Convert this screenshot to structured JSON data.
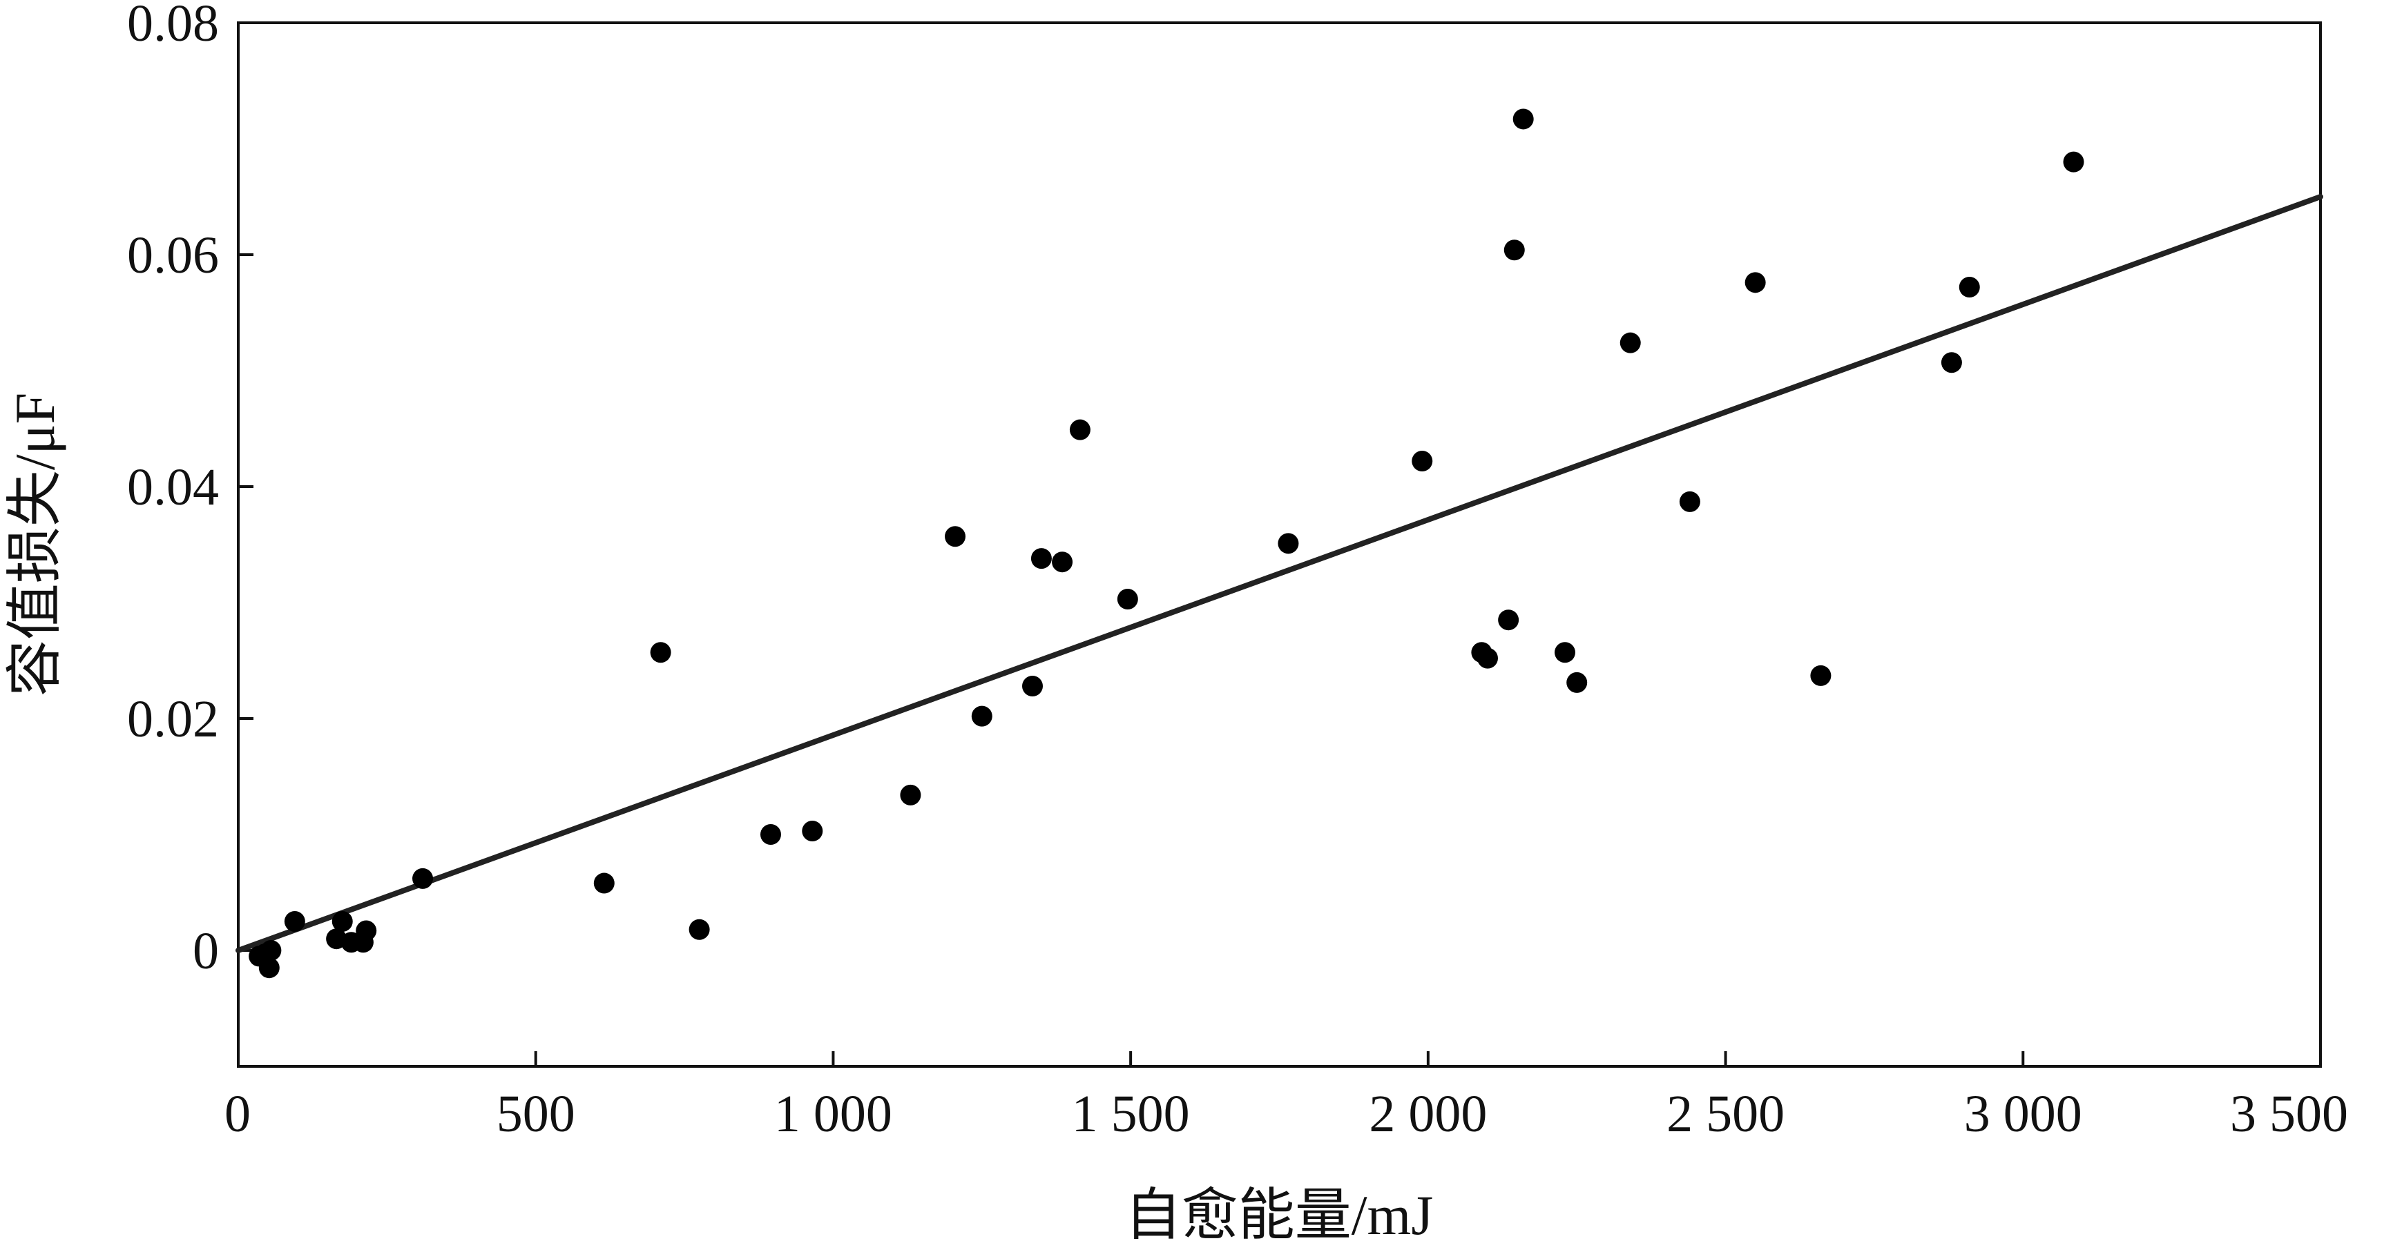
{
  "chart_data": {
    "type": "scatter",
    "title": "",
    "xlabel": "自愈能量/mJ",
    "ylabel": "容值损失/μF",
    "xlim": [
      0,
      3500
    ],
    "ylim": [
      -0.01,
      0.08
    ],
    "grid": false,
    "x_ticks": [
      {
        "value": 0,
        "label": "0"
      },
      {
        "value": 500,
        "label": "500"
      },
      {
        "value": 1000,
        "label": "1 000"
      },
      {
        "value": 1500,
        "label": "1 500"
      },
      {
        "value": 2000,
        "label": "2 000"
      },
      {
        "value": 2500,
        "label": "2 500"
      },
      {
        "value": 3000,
        "label": "3 000"
      },
      {
        "value": 3500,
        "label": "3 500"
      }
    ],
    "y_ticks": [
      {
        "value": 0,
        "label": "0"
      },
      {
        "value": 0.02,
        "label": "0.02"
      },
      {
        "value": 0.04,
        "label": "0.04"
      },
      {
        "value": 0.06,
        "label": "0.06"
      },
      {
        "value": 0.08,
        "label": "0.08"
      }
    ],
    "series": [
      {
        "points": [
          {
            "x": 35,
            "y": -0.0005
          },
          {
            "x": 45,
            "y": -0.0003
          },
          {
            "x": 52,
            "y": -0.0015
          },
          {
            "x": 55,
            "y": 0.0
          },
          {
            "x": 95,
            "y": 0.0025
          },
          {
            "x": 165,
            "y": 0.001
          },
          {
            "x": 175,
            "y": 0.0025
          },
          {
            "x": 190,
            "y": 0.0007
          },
          {
            "x": 210,
            "y": 0.0007
          },
          {
            "x": 215,
            "y": 0.0017
          },
          {
            "x": 310,
            "y": 0.0062
          },
          {
            "x": 615,
            "y": 0.0058
          },
          {
            "x": 710,
            "y": 0.0257
          },
          {
            "x": 775,
            "y": 0.0018
          },
          {
            "x": 895,
            "y": 0.01
          },
          {
            "x": 965,
            "y": 0.0103
          },
          {
            "x": 1130,
            "y": 0.0134
          },
          {
            "x": 1205,
            "y": 0.0357
          },
          {
            "x": 1250,
            "y": 0.0202
          },
          {
            "x": 1335,
            "y": 0.0228
          },
          {
            "x": 1350,
            "y": 0.0338
          },
          {
            "x": 1385,
            "y": 0.0335
          },
          {
            "x": 1415,
            "y": 0.0449
          },
          {
            "x": 1495,
            "y": 0.0303
          },
          {
            "x": 1765,
            "y": 0.0351
          },
          {
            "x": 1990,
            "y": 0.0422
          },
          {
            "x": 2090,
            "y": 0.0257
          },
          {
            "x": 2100,
            "y": 0.0252
          },
          {
            "x": 2135,
            "y": 0.0285
          },
          {
            "x": 2145,
            "y": 0.0604
          },
          {
            "x": 2160,
            "y": 0.0717
          },
          {
            "x": 2230,
            "y": 0.0257
          },
          {
            "x": 2250,
            "y": 0.0231
          },
          {
            "x": 2340,
            "y": 0.0524
          },
          {
            "x": 2440,
            "y": 0.0387
          },
          {
            "x": 2550,
            "y": 0.0576
          },
          {
            "x": 2660,
            "y": 0.0237
          },
          {
            "x": 2880,
            "y": 0.0507
          },
          {
            "x": 2910,
            "y": 0.0572
          },
          {
            "x": 3085,
            "y": 0.068
          }
        ]
      }
    ],
    "fit_line": {
      "type": "linear",
      "from": {
        "x": 0,
        "y": 0.0
      },
      "to": {
        "x": 3500,
        "y": 0.065
      }
    },
    "colors": {
      "points": "#000000",
      "line": "#222222",
      "axes": "#111111"
    }
  }
}
